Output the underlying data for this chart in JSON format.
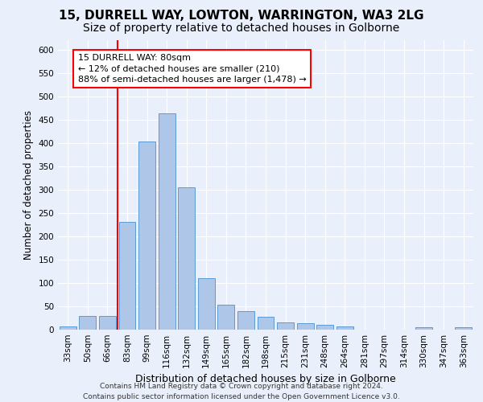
{
  "title_line1": "15, DURRELL WAY, LOWTON, WARRINGTON, WA3 2LG",
  "title_line2": "Size of property relative to detached houses in Golborne",
  "xlabel": "Distribution of detached houses by size in Golborne",
  "ylabel": "Number of detached properties",
  "categories": [
    "33sqm",
    "50sqm",
    "66sqm",
    "83sqm",
    "99sqm",
    "116sqm",
    "132sqm",
    "149sqm",
    "165sqm",
    "182sqm",
    "198sqm",
    "215sqm",
    "231sqm",
    "248sqm",
    "264sqm",
    "281sqm",
    "297sqm",
    "314sqm",
    "330sqm",
    "347sqm",
    "363sqm"
  ],
  "values": [
    7,
    30,
    30,
    230,
    403,
    463,
    305,
    110,
    53,
    39,
    27,
    15,
    13,
    10,
    7,
    0,
    0,
    0,
    5,
    0,
    5
  ],
  "bar_color": "#aec6e8",
  "bar_edge_color": "#5b9bd5",
  "vline_color": "red",
  "annotation_text": "15 DURRELL WAY: 80sqm\n← 12% of detached houses are smaller (210)\n88% of semi-detached houses are larger (1,478) →",
  "annotation_box_color": "white",
  "annotation_box_edge_color": "red",
  "ylim": [
    0,
    620
  ],
  "yticks": [
    0,
    50,
    100,
    150,
    200,
    250,
    300,
    350,
    400,
    450,
    500,
    550,
    600
  ],
  "footnote": "Contains HM Land Registry data © Crown copyright and database right 2024.\nContains public sector information licensed under the Open Government Licence v3.0.",
  "background_color": "#eaf0fb",
  "grid_color": "white",
  "title_fontsize": 11,
  "subtitle_fontsize": 10,
  "axis_label_fontsize": 8.5,
  "tick_fontsize": 7.5,
  "annotation_fontsize": 8,
  "footnote_fontsize": 6.5
}
